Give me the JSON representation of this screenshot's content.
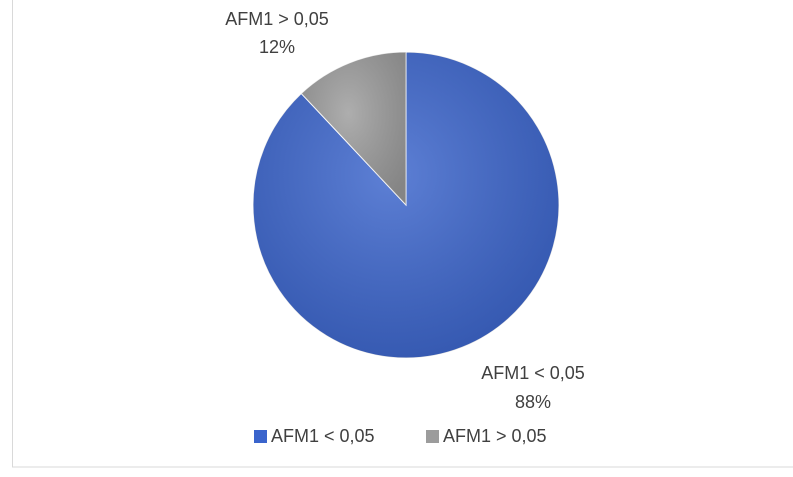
{
  "chart_data": {
    "type": "pie",
    "categories": [
      "AFM1 < 0,05",
      "AFM1 > 0,05"
    ],
    "values": [
      88,
      12
    ],
    "value_labels": [
      "88%",
      "12%"
    ],
    "colors": [
      "#3a64cc",
      "#9c9c9c"
    ],
    "legend": "bottom"
  }
}
